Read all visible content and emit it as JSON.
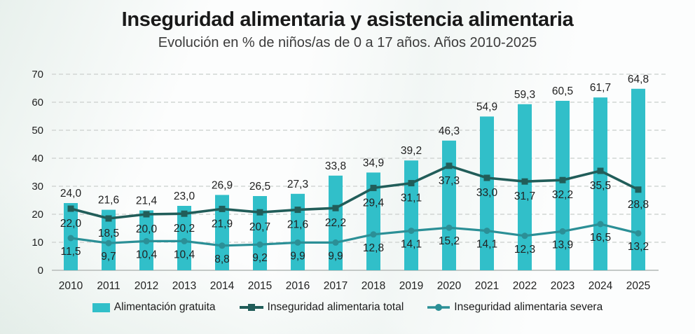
{
  "header": {
    "title": "Inseguridad alimentaria y asistencia alimentaria",
    "subtitle": "Evolución en % de niños/as de 0 a 17 años. Años 2010-2025"
  },
  "chart_data": {
    "type": "bar",
    "subtype": "combo-bar-and-lines",
    "categories": [
      "2010",
      "2011",
      "2012",
      "2013",
      "2014",
      "2015",
      "2016",
      "2017",
      "2018",
      "2019",
      "2020",
      "2021",
      "2022",
      "2023",
      "2024",
      "2025"
    ],
    "series": [
      {
        "name": "Alimentación gratuita",
        "type": "bar",
        "color": "#31bfc9",
        "values": [
          24.0,
          21.6,
          21.4,
          23.0,
          26.9,
          26.5,
          27.3,
          33.8,
          34.9,
          39.2,
          46.3,
          54.9,
          59.3,
          60.5,
          61.7,
          64.8
        ]
      },
      {
        "name": "Inseguridad alimentaria total",
        "type": "line",
        "marker": "square",
        "color": "#215d59",
        "values": [
          22.0,
          18.5,
          20.0,
          20.2,
          21.9,
          20.7,
          21.6,
          22.2,
          29.4,
          31.1,
          37.3,
          33.0,
          31.7,
          32.2,
          35.5,
          28.8
        ]
      },
      {
        "name": "Inseguridad alimentaria severa",
        "type": "line",
        "marker": "circle",
        "color": "#2b8f96",
        "values": [
          11.5,
          9.7,
          10.4,
          10.4,
          8.8,
          9.2,
          9.9,
          9.9,
          12.8,
          14.1,
          15.2,
          14.1,
          12.3,
          13.9,
          16.5,
          13.2
        ]
      }
    ],
    "ylabel": "",
    "xlabel": "",
    "ylim": [
      0,
      70
    ],
    "ytick_step": 10,
    "yticks": [
      "0",
      "10",
      "20",
      "30",
      "40",
      "50",
      "60",
      "70"
    ],
    "grid": "horizontal-dashed",
    "legend_position": "bottom",
    "decimal_separator": ",",
    "label_color": "#212121",
    "axis_text_color": "#222222",
    "gridline_color": "#d2d6d4",
    "axis_line_color": "#c4c9c7"
  }
}
